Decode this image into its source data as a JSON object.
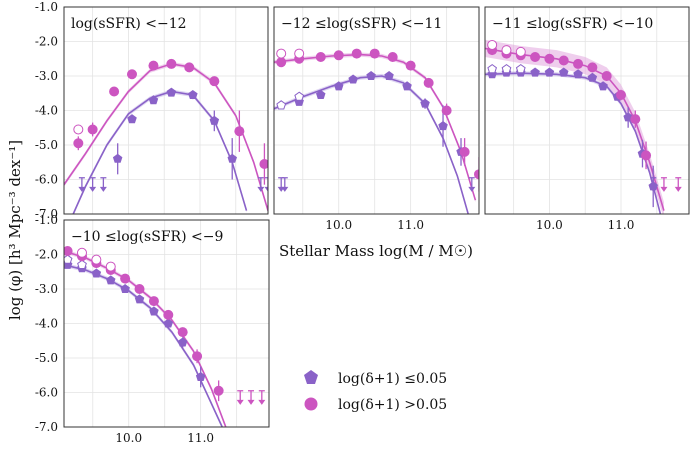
{
  "chart_data": {
    "type": "scatter",
    "title": "",
    "xlabel": "Stellar Mass log(M / M☉)",
    "ylabel": "log (φ) [h³ Mpc⁻³ dex⁻¹]",
    "xlim": [
      9.1,
      11.95
    ],
    "ylim": [
      -7.0,
      -1.0
    ],
    "y_ticks": [
      "-1.0",
      "-2.0",
      "-3.0",
      "-4.0",
      "-5.0",
      "-6.0",
      "-7.0"
    ],
    "x_ticks": [
      "10.0",
      "11.0"
    ],
    "colors": {
      "low_density": "#8a62c8",
      "high_density": "#cc55c0",
      "band_high": "#e2a6de",
      "band_low": "#c0aee6"
    },
    "legend": [
      {
        "key": "low",
        "label": "log(δ+1) ≤0.05",
        "marker": "pentagon"
      },
      {
        "key": "high",
        "label": "log(δ+1) >0.05",
        "marker": "circle"
      }
    ],
    "panels": [
      {
        "title": "log(sSFR) <−12",
        "low": {
          "name": "log(δ+1) ≤0.05",
          "points": [
            [
              9.85,
              -5.4
            ],
            [
              10.05,
              -4.25
            ],
            [
              10.35,
              -3.7
            ],
            [
              10.6,
              -3.48
            ],
            [
              10.9,
              -3.55
            ],
            [
              11.2,
              -4.3
            ],
            [
              11.45,
              -5.4
            ]
          ],
          "open": [],
          "errors": [
            0.45,
            0.1,
            0.1,
            0.08,
            0.12,
            0.3,
            0.6
          ],
          "upper_limits": [
            9.35,
            9.5,
            9.65,
            11.85,
            11.95
          ],
          "fit": [
            [
              9.1,
              -7.6
            ],
            [
              9.4,
              -6.2
            ],
            [
              9.7,
              -5.0
            ],
            [
              10.0,
              -4.1
            ],
            [
              10.3,
              -3.65
            ],
            [
              10.6,
              -3.45
            ],
            [
              10.9,
              -3.55
            ],
            [
              11.2,
              -4.3
            ],
            [
              11.45,
              -5.5
            ],
            [
              11.65,
              -6.9
            ]
          ]
        },
        "high": {
          "name": "log(δ+1) >0.05",
          "points": [
            [
              9.3,
              -4.95
            ],
            [
              9.5,
              -4.55
            ],
            [
              9.8,
              -3.45
            ],
            [
              10.05,
              -2.95
            ],
            [
              10.35,
              -2.7
            ],
            [
              10.6,
              -2.65
            ],
            [
              10.85,
              -2.75
            ],
            [
              11.2,
              -3.15
            ],
            [
              11.55,
              -4.6
            ],
            [
              11.9,
              -5.55
            ]
          ],
          "open": [
            [
              9.3,
              -4.55
            ]
          ],
          "errors": [
            0.2,
            0.2,
            0.1,
            0.08,
            0.06,
            0.06,
            0.08,
            0.12,
            0.6,
            0.6
          ],
          "upper_limits": [],
          "fit": [
            [
              9.1,
              -6.15
            ],
            [
              9.4,
              -5.25
            ],
            [
              9.7,
              -4.3
            ],
            [
              10.0,
              -3.45
            ],
            [
              10.3,
              -2.85
            ],
            [
              10.6,
              -2.65
            ],
            [
              10.9,
              -2.75
            ],
            [
              11.2,
              -3.2
            ],
            [
              11.5,
              -4.15
            ],
            [
              11.75,
              -5.5
            ],
            [
              11.95,
              -6.9
            ]
          ]
        }
      },
      {
        "title": "−12 ≤log(sSFR) <−11",
        "low": {
          "name": "log(δ+1) ≤0.05",
          "points": [
            [
              9.45,
              -3.75
            ],
            [
              9.75,
              -3.55
            ],
            [
              10.0,
              -3.3
            ],
            [
              10.2,
              -3.1
            ],
            [
              10.45,
              -3.0
            ],
            [
              10.7,
              -3.0
            ],
            [
              10.95,
              -3.3
            ],
            [
              11.2,
              -3.8
            ],
            [
              11.45,
              -4.45
            ],
            [
              11.7,
              -5.2
            ]
          ],
          "open": [
            [
              9.2,
              -3.85
            ],
            [
              9.45,
              -3.6
            ]
          ],
          "errors": [
            0.1,
            0.08,
            0.06,
            0.05,
            0.05,
            0.06,
            0.08,
            0.15,
            0.6,
            0.4
          ],
          "upper_limits": [
            9.2,
            9.25,
            11.85
          ],
          "fit": [
            [
              9.1,
              -3.95
            ],
            [
              9.5,
              -3.6
            ],
            [
              9.9,
              -3.3
            ],
            [
              10.3,
              -3.05
            ],
            [
              10.6,
              -3.0
            ],
            [
              10.9,
              -3.2
            ],
            [
              11.2,
              -3.8
            ],
            [
              11.45,
              -4.8
            ],
            [
              11.65,
              -5.9
            ],
            [
              11.8,
              -7.0
            ]
          ]
        },
        "high": {
          "name": "log(δ+1) >0.05",
          "points": [
            [
              9.2,
              -2.6
            ],
            [
              9.45,
              -2.5
            ],
            [
              9.75,
              -2.45
            ],
            [
              10.0,
              -2.4
            ],
            [
              10.25,
              -2.35
            ],
            [
              10.5,
              -2.35
            ],
            [
              10.75,
              -2.45
            ],
            [
              11.0,
              -2.7
            ],
            [
              11.25,
              -3.2
            ],
            [
              11.5,
              -4.0
            ],
            [
              11.75,
              -5.2
            ],
            [
              11.95,
              -5.85
            ]
          ],
          "open": [
            [
              9.2,
              -2.35
            ],
            [
              9.45,
              -2.35
            ]
          ],
          "errors": [
            0.1,
            0.05,
            0.05,
            0.05,
            0.05,
            0.05,
            0.05,
            0.06,
            0.1,
            0.2,
            0.4,
            0.5
          ],
          "upper_limits": [],
          "fit": [
            [
              9.1,
              -2.6
            ],
            [
              9.5,
              -2.5
            ],
            [
              9.9,
              -2.42
            ],
            [
              10.3,
              -2.38
            ],
            [
              10.6,
              -2.42
            ],
            [
              10.9,
              -2.6
            ],
            [
              11.2,
              -3.05
            ],
            [
              11.45,
              -3.9
            ],
            [
              11.7,
              -5.2
            ],
            [
              11.9,
              -6.6
            ]
          ]
        }
      },
      {
        "title": "−11 ≤log(sSFR) <−10",
        "low": {
          "name": "log(δ+1) ≤0.05",
          "points": [
            [
              9.2,
              -2.95
            ],
            [
              9.4,
              -2.9
            ],
            [
              9.6,
              -2.9
            ],
            [
              9.8,
              -2.9
            ],
            [
              10.0,
              -2.9
            ],
            [
              10.2,
              -2.9
            ],
            [
              10.4,
              -2.95
            ],
            [
              10.6,
              -3.05
            ],
            [
              10.75,
              -3.3
            ],
            [
              10.95,
              -3.6
            ],
            [
              11.1,
              -4.2
            ],
            [
              11.3,
              -5.25
            ],
            [
              11.45,
              -6.2
            ]
          ],
          "open": [
            [
              9.2,
              -2.8
            ],
            [
              9.4,
              -2.8
            ],
            [
              9.6,
              -2.8
            ]
          ],
          "errors": [
            0.05,
            0.05,
            0.05,
            0.05,
            0.05,
            0.05,
            0.05,
            0.06,
            0.08,
            0.1,
            0.3,
            0.4,
            0.6
          ],
          "upper_limits": [
            11.45
          ],
          "fit": [
            [
              9.1,
              -2.95
            ],
            [
              9.6,
              -2.92
            ],
            [
              10.1,
              -2.95
            ],
            [
              10.5,
              -3.05
            ],
            [
              10.8,
              -3.3
            ],
            [
              11.0,
              -3.8
            ],
            [
              11.2,
              -4.6
            ],
            [
              11.4,
              -5.8
            ],
            [
              11.55,
              -7.0
            ]
          ]
        },
        "high": {
          "name": "log(δ+1) >0.05",
          "points": [
            [
              9.2,
              -2.25
            ],
            [
              9.4,
              -2.35
            ],
            [
              9.6,
              -2.4
            ],
            [
              9.8,
              -2.45
            ],
            [
              10.0,
              -2.5
            ],
            [
              10.2,
              -2.55
            ],
            [
              10.4,
              -2.65
            ],
            [
              10.6,
              -2.75
            ],
            [
              10.8,
              -3.0
            ],
            [
              11.0,
              -3.55
            ],
            [
              11.2,
              -4.25
            ],
            [
              11.35,
              -5.3
            ]
          ],
          "open": [
            [
              9.2,
              -2.1
            ],
            [
              9.4,
              -2.25
            ],
            [
              9.6,
              -2.3
            ]
          ],
          "errors": [
            0.05,
            0.05,
            0.05,
            0.05,
            0.05,
            0.05,
            0.05,
            0.06,
            0.1,
            0.15,
            0.25,
            0.4
          ],
          "upper_limits": [
            11.6,
            11.8
          ],
          "fit": [
            [
              9.1,
              -2.2
            ],
            [
              9.6,
              -2.38
            ],
            [
              10.1,
              -2.5
            ],
            [
              10.5,
              -2.7
            ],
            [
              10.8,
              -3.0
            ],
            [
              11.0,
              -3.5
            ],
            [
              11.2,
              -4.3
            ],
            [
              11.4,
              -5.5
            ],
            [
              11.6,
              -6.9
            ]
          ]
        }
      },
      {
        "title": "−10 ≤log(sSFR) <−9",
        "low": {
          "name": "log(δ+1) ≤0.05",
          "points": [
            [
              9.15,
              -2.3
            ],
            [
              9.35,
              -2.4
            ],
            [
              9.55,
              -2.55
            ],
            [
              9.75,
              -2.75
            ],
            [
              9.95,
              -3.0
            ],
            [
              10.15,
              -3.3
            ],
            [
              10.35,
              -3.65
            ],
            [
              10.55,
              -4.0
            ],
            [
              10.75,
              -4.55
            ],
            [
              11.0,
              -5.55
            ]
          ],
          "open": [
            [
              9.15,
              -2.15
            ],
            [
              9.35,
              -2.3
            ]
          ],
          "errors": [
            0.05,
            0.05,
            0.05,
            0.05,
            0.05,
            0.06,
            0.08,
            0.1,
            0.15,
            0.3
          ],
          "upper_limits": [],
          "fit": [
            [
              9.1,
              -2.3
            ],
            [
              9.4,
              -2.45
            ],
            [
              9.7,
              -2.7
            ],
            [
              10.0,
              -3.05
            ],
            [
              10.3,
              -3.55
            ],
            [
              10.6,
              -4.25
            ],
            [
              10.9,
              -5.2
            ],
            [
              11.1,
              -6.1
            ],
            [
              11.3,
              -7.0
            ]
          ]
        },
        "high": {
          "name": "log(δ+1) >0.05",
          "points": [
            [
              9.15,
              -1.9
            ],
            [
              9.35,
              -2.05
            ],
            [
              9.55,
              -2.25
            ],
            [
              9.75,
              -2.45
            ],
            [
              9.95,
              -2.7
            ],
            [
              10.15,
              -3.0
            ],
            [
              10.35,
              -3.35
            ],
            [
              10.55,
              -3.75
            ],
            [
              10.75,
              -4.25
            ],
            [
              10.95,
              -4.95
            ],
            [
              11.25,
              -5.95
            ]
          ],
          "open": [
            [
              9.35,
              -1.95
            ],
            [
              9.55,
              -2.15
            ],
            [
              9.75,
              -2.35
            ]
          ],
          "errors": [
            0.05,
            0.05,
            0.05,
            0.05,
            0.05,
            0.06,
            0.08,
            0.1,
            0.12,
            0.2,
            0.3
          ],
          "upper_limits": [
            11.55,
            11.7,
            11.85
          ],
          "fit": [
            [
              9.1,
              -1.9
            ],
            [
              9.4,
              -2.1
            ],
            [
              9.7,
              -2.4
            ],
            [
              10.0,
              -2.75
            ],
            [
              10.3,
              -3.25
            ],
            [
              10.6,
              -3.9
            ],
            [
              10.9,
              -4.8
            ],
            [
              11.15,
              -5.9
            ],
            [
              11.35,
              -7.0
            ]
          ]
        }
      }
    ]
  }
}
